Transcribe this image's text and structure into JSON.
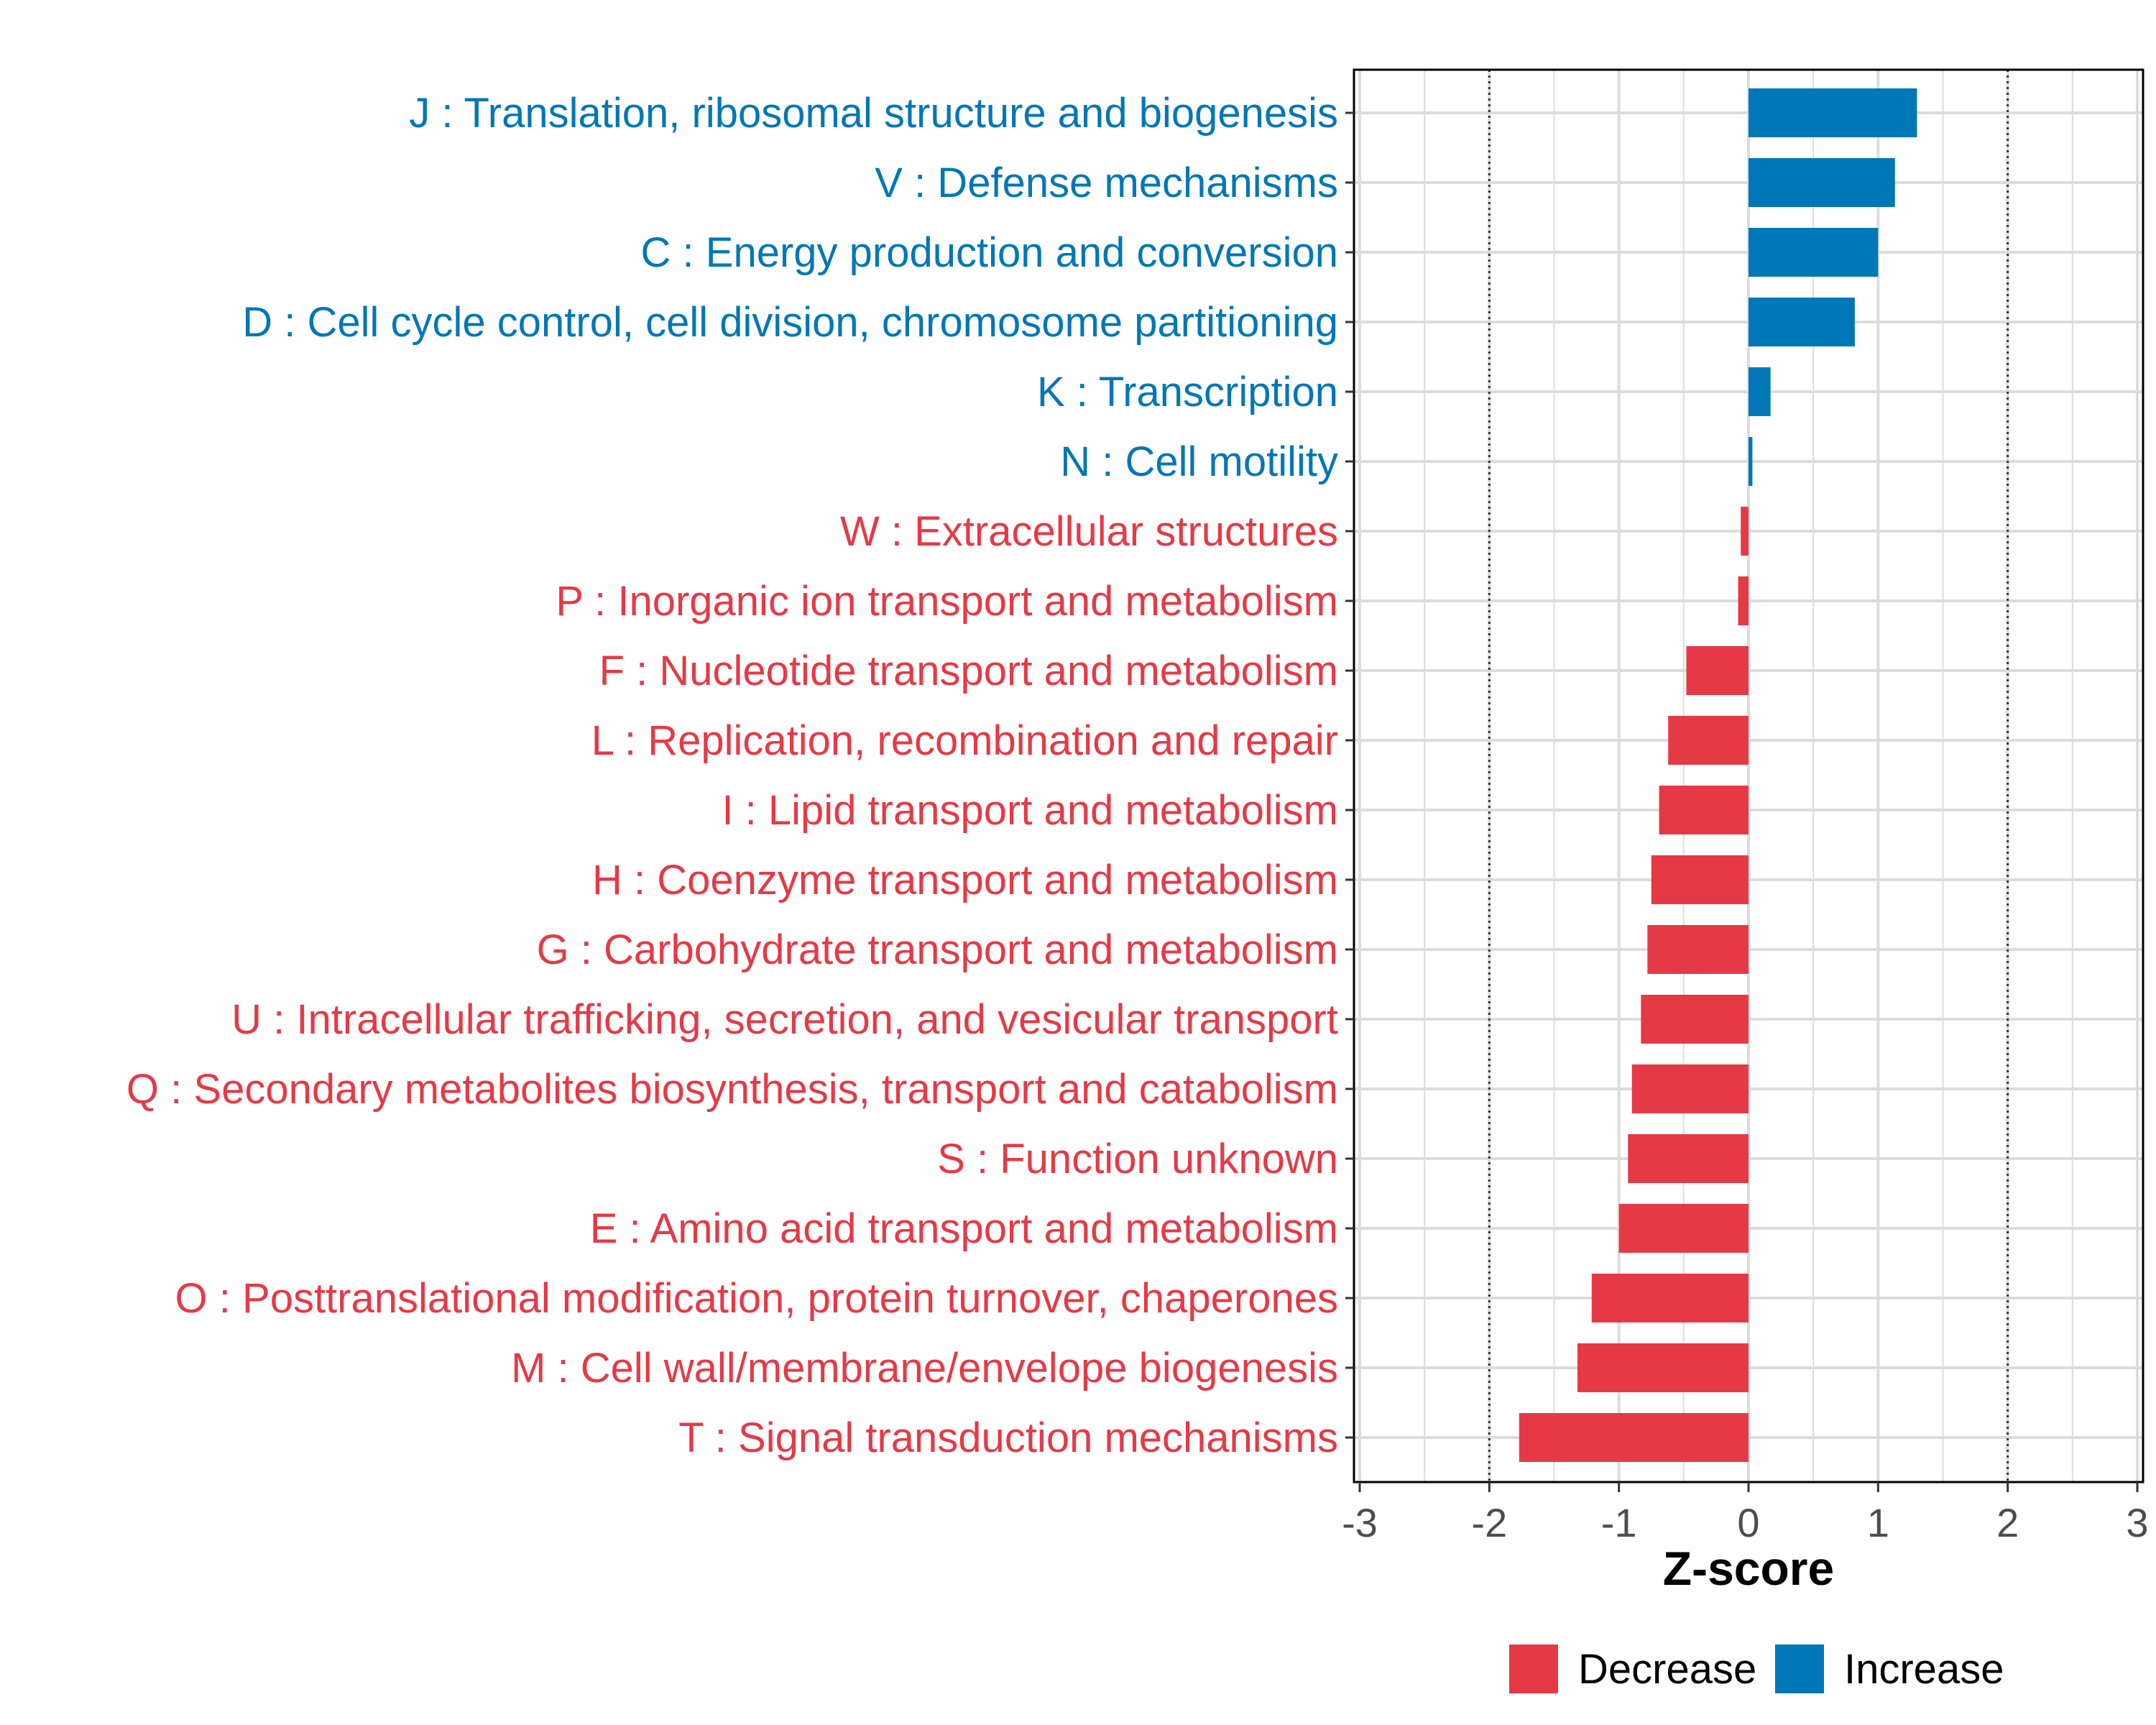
{
  "chart_data": {
    "type": "bar",
    "orientation": "horizontal",
    "xlabel": "Z-score",
    "xlim": [
      -3,
      3
    ],
    "xticks": [
      -3,
      -2,
      -1,
      0,
      1,
      2,
      3
    ],
    "reference_lines": [
      -2,
      2
    ],
    "grid": true,
    "legend_position": "bottom",
    "colors": {
      "Decrease": "#E63946",
      "Increase": "#0077B6"
    },
    "legend": [
      {
        "label": "Decrease",
        "color": "#E63946"
      },
      {
        "label": "Increase",
        "color": "#0077B6"
      }
    ],
    "bars": [
      {
        "label": "J : Translation, ribosomal structure and biogenesis",
        "value": 1.3,
        "group": "Increase"
      },
      {
        "label": "V : Defense mechanisms",
        "value": 1.13,
        "group": "Increase"
      },
      {
        "label": "C : Energy production and conversion",
        "value": 1.0,
        "group": "Increase"
      },
      {
        "label": "D : Cell cycle control, cell division, chromosome partitioning",
        "value": 0.82,
        "group": "Increase"
      },
      {
        "label": "K : Transcription",
        "value": 0.17,
        "group": "Increase"
      },
      {
        "label": "N : Cell motility",
        "value": 0.03,
        "group": "Increase"
      },
      {
        "label": "W : Extracellular structures",
        "value": -0.06,
        "group": "Decrease"
      },
      {
        "label": "P : Inorganic ion transport and metabolism",
        "value": -0.08,
        "group": "Decrease"
      },
      {
        "label": "F : Nucleotide transport and metabolism",
        "value": -0.48,
        "group": "Decrease"
      },
      {
        "label": "L : Replication, recombination and repair",
        "value": -0.62,
        "group": "Decrease"
      },
      {
        "label": "I : Lipid transport and metabolism",
        "value": -0.69,
        "group": "Decrease"
      },
      {
        "label": "H : Coenzyme transport and metabolism",
        "value": -0.75,
        "group": "Decrease"
      },
      {
        "label": "G : Carbohydrate transport and metabolism",
        "value": -0.78,
        "group": "Decrease"
      },
      {
        "label": "U : Intracellular trafficking, secretion, and vesicular transport",
        "value": -0.83,
        "group": "Decrease"
      },
      {
        "label": "Q : Secondary metabolites biosynthesis, transport and catabolism",
        "value": -0.9,
        "group": "Decrease"
      },
      {
        "label": "S : Function unknown",
        "value": -0.93,
        "group": "Decrease"
      },
      {
        "label": "E : Amino acid transport and metabolism",
        "value": -1.0,
        "group": "Decrease"
      },
      {
        "label": "O : Posttranslational modification, protein turnover, chaperones",
        "value": -1.21,
        "group": "Decrease"
      },
      {
        "label": "M : Cell wall/membrane/envelope biogenesis",
        "value": -1.32,
        "group": "Decrease"
      },
      {
        "label": "T : Signal transduction mechanisms",
        "value": -1.77,
        "group": "Decrease"
      }
    ]
  }
}
